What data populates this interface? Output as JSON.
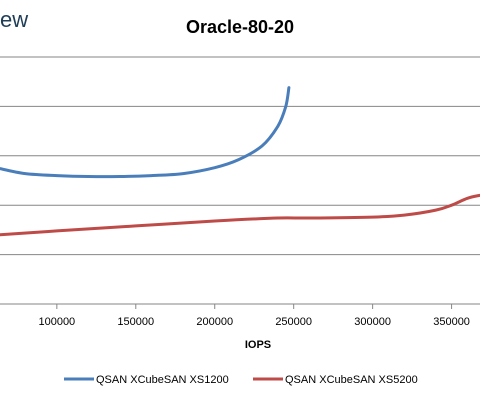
{
  "brand_fragment": "ew",
  "chart_data": {
    "type": "line",
    "title": "Oracle-80-20",
    "xlabel": "IOPS",
    "ylabel": "",
    "x_ticks": [
      100000,
      150000,
      200000,
      250000,
      300000,
      350000
    ],
    "x_tick_labels": [
      "100000",
      "150000",
      "200000",
      "250000",
      "300000",
      "350000"
    ],
    "xlim": [
      64000,
      368000
    ],
    "ylim": [
      0,
      5
    ],
    "grid": true,
    "legend_position": "bottom",
    "series": [
      {
        "name": "QSAN XCubeSAN XS1200",
        "color": "#4a7ebb",
        "points": [
          [
            64000,
            2.74
          ],
          [
            80000,
            2.64
          ],
          [
            100000,
            2.6
          ],
          [
            120000,
            2.58
          ],
          [
            140000,
            2.58
          ],
          [
            160000,
            2.6
          ],
          [
            180000,
            2.64
          ],
          [
            200000,
            2.76
          ],
          [
            215000,
            2.92
          ],
          [
            230000,
            3.2
          ],
          [
            240000,
            3.6
          ],
          [
            245000,
            4.0
          ],
          [
            247000,
            4.38
          ]
        ]
      },
      {
        "name": "QSAN XCubeSAN XS5200",
        "color": "#be4b48",
        "points": [
          [
            64000,
            1.4
          ],
          [
            100000,
            1.48
          ],
          [
            150000,
            1.58
          ],
          [
            200000,
            1.68
          ],
          [
            240000,
            1.74
          ],
          [
            260000,
            1.74
          ],
          [
            300000,
            1.76
          ],
          [
            320000,
            1.8
          ],
          [
            340000,
            1.9
          ],
          [
            350000,
            2.0
          ],
          [
            360000,
            2.14
          ],
          [
            368000,
            2.2
          ]
        ]
      }
    ]
  }
}
